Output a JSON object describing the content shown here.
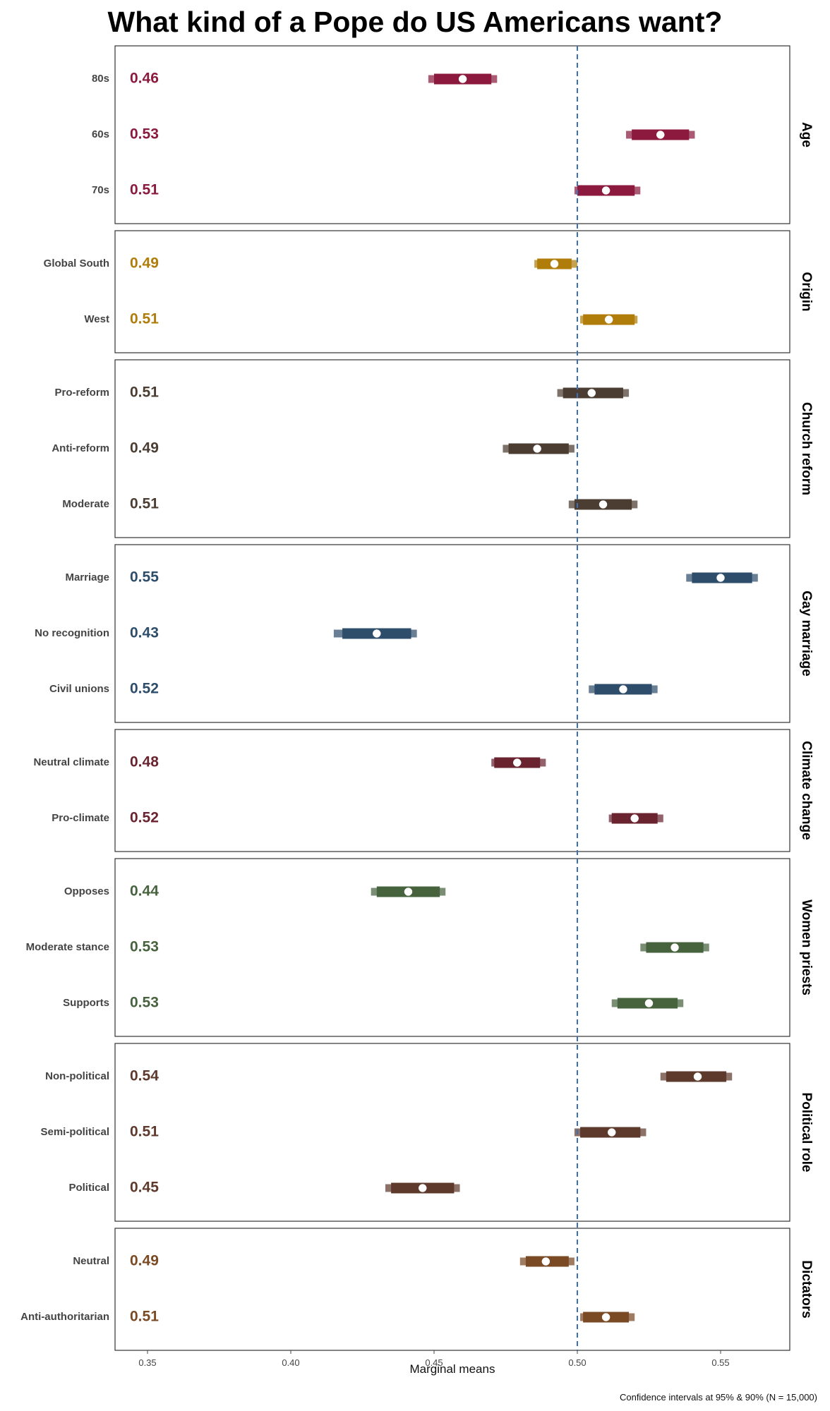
{
  "chart_data": {
    "type": "errorbar",
    "title": "What kind of a Pope do US Americans want?",
    "xlabel": "Marginal means",
    "xlim": [
      0.34,
      0.575
    ],
    "xticks": [
      0.35,
      0.4,
      0.45,
      0.5,
      0.55
    ],
    "xtick_labels": [
      "0.35",
      "0.40",
      "0.45",
      "0.50",
      "0.55"
    ],
    "reference_line": 0.5,
    "note": "Confidence intervals at 95% & 90% (N = 15,000)",
    "panels": [
      {
        "name": "Age",
        "color": "#8b1a3e",
        "items": [
          {
            "label": "80s",
            "display": "0.46",
            "estimate": 0.46,
            "ci95": [
              0.448,
              0.472
            ],
            "ci90": [
              0.45,
              0.47
            ]
          },
          {
            "label": "60s",
            "display": "0.53",
            "estimate": 0.529,
            "ci95": [
              0.517,
              0.541
            ],
            "ci90": [
              0.519,
              0.539
            ]
          },
          {
            "label": "70s",
            "display": "0.51",
            "estimate": 0.51,
            "ci95": [
              0.499,
              0.522
            ],
            "ci90": [
              0.5,
              0.52
            ]
          }
        ]
      },
      {
        "name": "Origin",
        "color": "#b07d0a",
        "items": [
          {
            "label": "Global South",
            "display": "0.49",
            "estimate": 0.492,
            "ci95": [
              0.485,
              0.5
            ],
            "ci90": [
              0.486,
              0.498
            ]
          },
          {
            "label": "West",
            "display": "0.51",
            "estimate": 0.511,
            "ci95": [
              0.501,
              0.521
            ],
            "ci90": [
              0.502,
              0.52
            ]
          }
        ]
      },
      {
        "name": "Church reform",
        "color": "#4b3d32",
        "items": [
          {
            "label": "Pro-reform",
            "display": "0.51",
            "estimate": 0.505,
            "ci95": [
              0.493,
              0.518
            ],
            "ci90": [
              0.495,
              0.516
            ]
          },
          {
            "label": "Anti-reform",
            "display": "0.49",
            "estimate": 0.486,
            "ci95": [
              0.474,
              0.499
            ],
            "ci90": [
              0.476,
              0.497
            ]
          },
          {
            "label": "Moderate",
            "display": "0.51",
            "estimate": 0.509,
            "ci95": [
              0.497,
              0.521
            ],
            "ci90": [
              0.499,
              0.519
            ]
          }
        ]
      },
      {
        "name": "Gay marriage",
        "color": "#2e4d6b",
        "items": [
          {
            "label": "Marriage",
            "display": "0.55",
            "estimate": 0.55,
            "ci95": [
              0.538,
              0.563
            ],
            "ci90": [
              0.54,
              0.561
            ]
          },
          {
            "label": "No recognition",
            "display": "0.43",
            "estimate": 0.43,
            "ci95": [
              0.415,
              0.444
            ],
            "ci90": [
              0.418,
              0.442
            ]
          },
          {
            "label": "Civil unions",
            "display": "0.52",
            "estimate": 0.516,
            "ci95": [
              0.504,
              0.528
            ],
            "ci90": [
              0.506,
              0.526
            ]
          }
        ]
      },
      {
        "name": "Climate change",
        "color": "#6a2430",
        "items": [
          {
            "label": "Neutral climate",
            "display": "0.48",
            "estimate": 0.479,
            "ci95": [
              0.47,
              0.489
            ],
            "ci90": [
              0.471,
              0.487
            ]
          },
          {
            "label": "Pro-climate",
            "display": "0.52",
            "estimate": 0.52,
            "ci95": [
              0.511,
              0.53
            ],
            "ci90": [
              0.512,
              0.528
            ]
          }
        ]
      },
      {
        "name": "Women priests",
        "color": "#46633e",
        "items": [
          {
            "label": "Opposes",
            "display": "0.44",
            "estimate": 0.441,
            "ci95": [
              0.428,
              0.454
            ],
            "ci90": [
              0.43,
              0.452
            ]
          },
          {
            "label": "Moderate stance",
            "display": "0.53",
            "estimate": 0.534,
            "ci95": [
              0.522,
              0.546
            ],
            "ci90": [
              0.524,
              0.544
            ]
          },
          {
            "label": "Supports",
            "display": "0.53",
            "estimate": 0.525,
            "ci95": [
              0.512,
              0.537
            ],
            "ci90": [
              0.514,
              0.535
            ]
          }
        ]
      },
      {
        "name": "Political role",
        "color": "#5e3a2c",
        "items": [
          {
            "label": "Non-political",
            "display": "0.54",
            "estimate": 0.542,
            "ci95": [
              0.529,
              0.554
            ],
            "ci90": [
              0.531,
              0.552
            ]
          },
          {
            "label": "Semi-political",
            "display": "0.51",
            "estimate": 0.512,
            "ci95": [
              0.499,
              0.524
            ],
            "ci90": [
              0.501,
              0.522
            ]
          },
          {
            "label": "Political",
            "display": "0.45",
            "estimate": 0.446,
            "ci95": [
              0.433,
              0.459
            ],
            "ci90": [
              0.435,
              0.457
            ]
          }
        ]
      },
      {
        "name": "Dictators",
        "color": "#7a4a24",
        "items": [
          {
            "label": "Neutral",
            "display": "0.49",
            "estimate": 0.489,
            "ci95": [
              0.48,
              0.499
            ],
            "ci90": [
              0.482,
              0.497
            ]
          },
          {
            "label": "Anti-authoritarian",
            "display": "0.51",
            "estimate": 0.51,
            "ci95": [
              0.501,
              0.52
            ],
            "ci90": [
              0.502,
              0.518
            ]
          }
        ]
      }
    ]
  }
}
